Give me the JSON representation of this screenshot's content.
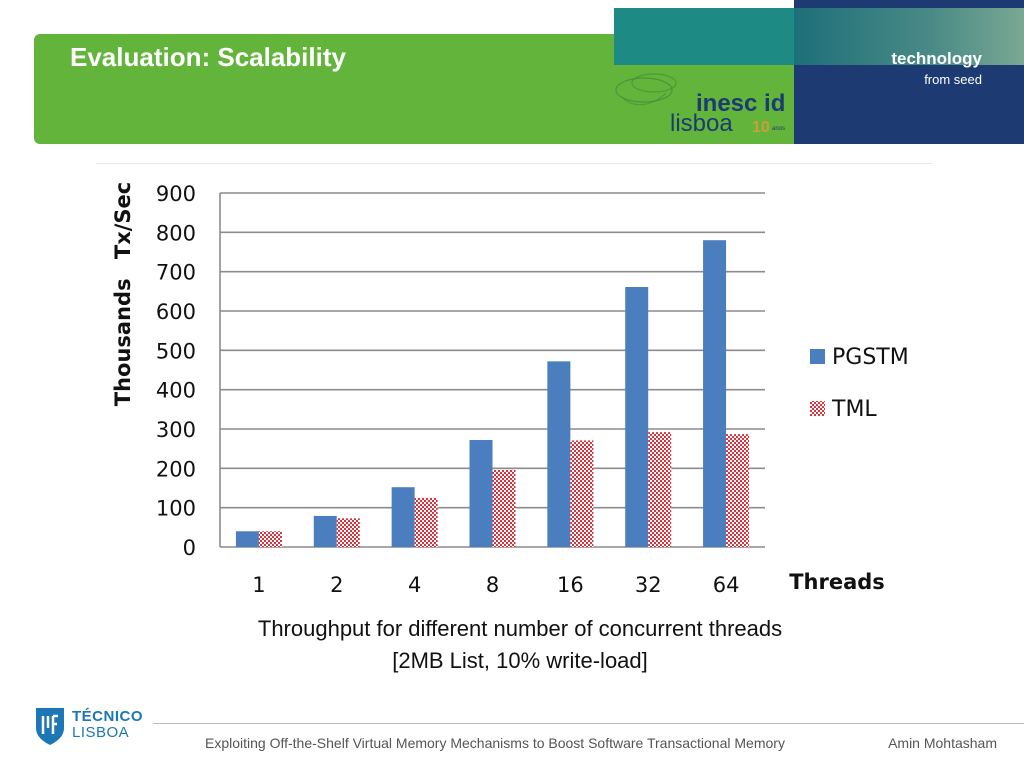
{
  "slide": {
    "title": "Evaluation: Scalability",
    "tagline_main": "technology",
    "tagline_sub": "from seed",
    "logo_line1": "inesc id",
    "logo_line2": "lisboa",
    "logo_badge": "10",
    "logo_anos": "anos",
    "caption_line1": "Throughput for different number of concurrent threads",
    "caption_line2": "[2MB List, 10% write-load]",
    "footer_text": "Exploiting Off-the-Shelf Virtual Memory Mechanisms to Boost Software Transactional Memory",
    "footer_author": "Amin Mohtasham",
    "uni_line1": "TÉCNICO",
    "uni_line2": "LISBOA"
  },
  "colors": {
    "header_green": "#62b43a",
    "teal": "#1e8a84",
    "navy": "#1d3b72",
    "pgstm_blue": "#4a7ebf",
    "tml_red": "#e0303a",
    "grid": "#8c8c8c",
    "university_blue": "#1b77b6"
  },
  "chart_data": {
    "type": "bar",
    "title": "",
    "xlabel": "Threads",
    "ylabel_line1": "Thousands",
    "ylabel_line2": "Tx/Sec",
    "categories": [
      "1",
      "2",
      "4",
      "8",
      "16",
      "32",
      "64"
    ],
    "ylim": [
      0,
      900
    ],
    "yticks": [
      0,
      100,
      200,
      300,
      400,
      500,
      600,
      700,
      800,
      900
    ],
    "grid": true,
    "legend_position": "right",
    "series": [
      {
        "name": "PGSTM",
        "color": "#4a7ebf",
        "pattern": "solid",
        "values": [
          40,
          79,
          152,
          272,
          472,
          661,
          780
        ]
      },
      {
        "name": "TML",
        "color": "#e0303a",
        "pattern": "checkered",
        "values": [
          40,
          73,
          125,
          196,
          271,
          292,
          287
        ]
      }
    ]
  }
}
